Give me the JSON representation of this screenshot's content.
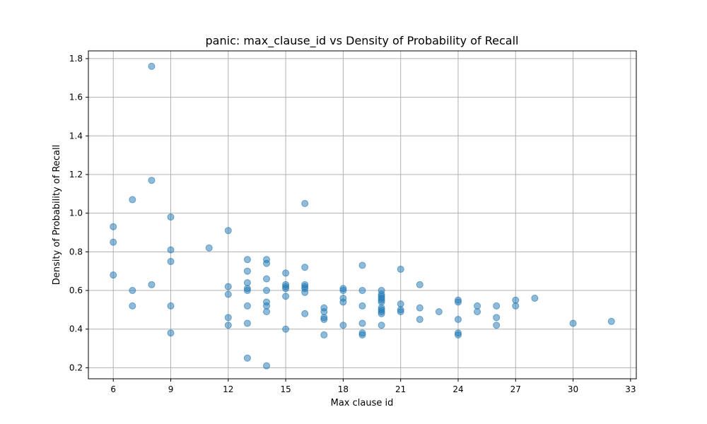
{
  "chart_data": {
    "type": "scatter",
    "title": "panic: max_clause_id vs Density of Probability of Recall",
    "xlabel": "Max clause id",
    "ylabel": "Density of Probability of Recall",
    "xlim": [
      4.7,
      33.3
    ],
    "ylim": [
      0.143,
      1.84
    ],
    "xticks": [
      6,
      9,
      12,
      15,
      18,
      21,
      24,
      27,
      30,
      33
    ],
    "yticks": [
      0.2,
      0.4,
      0.6,
      0.8,
      1.0,
      1.2,
      1.4,
      1.6,
      1.8
    ],
    "ytick_labels": [
      "0.2",
      "0.4",
      "0.6",
      "0.8",
      "1.0",
      "1.2",
      "1.4",
      "1.6",
      "1.8"
    ],
    "grid": true,
    "color": "#1f77b4",
    "points": [
      [
        6,
        0.93
      ],
      [
        6,
        0.85
      ],
      [
        6,
        0.68
      ],
      [
        7,
        1.07
      ],
      [
        7,
        0.6
      ],
      [
        7,
        0.52
      ],
      [
        8,
        1.76
      ],
      [
        8,
        1.17
      ],
      [
        8,
        0.63
      ],
      [
        9,
        0.98
      ],
      [
        9,
        0.81
      ],
      [
        9,
        0.75
      ],
      [
        9,
        0.52
      ],
      [
        9,
        0.38
      ],
      [
        11,
        0.82
      ],
      [
        12,
        0.91
      ],
      [
        12,
        0.62
      ],
      [
        12,
        0.58
      ],
      [
        12,
        0.46
      ],
      [
        12,
        0.42
      ],
      [
        13,
        0.76
      ],
      [
        13,
        0.7
      ],
      [
        13,
        0.64
      ],
      [
        13,
        0.61
      ],
      [
        13,
        0.6
      ],
      [
        13,
        0.52
      ],
      [
        13,
        0.43
      ],
      [
        13,
        0.25
      ],
      [
        14,
        0.76
      ],
      [
        14,
        0.74
      ],
      [
        14,
        0.66
      ],
      [
        14,
        0.6
      ],
      [
        14,
        0.54
      ],
      [
        14,
        0.52
      ],
      [
        14,
        0.49
      ],
      [
        14,
        0.21
      ],
      [
        15,
        0.69
      ],
      [
        15,
        0.63
      ],
      [
        15,
        0.62
      ],
      [
        15,
        0.61
      ],
      [
        15,
        0.57
      ],
      [
        15,
        0.4
      ],
      [
        16,
        1.05
      ],
      [
        16,
        0.72
      ],
      [
        16,
        0.63
      ],
      [
        16,
        0.62
      ],
      [
        16,
        0.61
      ],
      [
        16,
        0.59
      ],
      [
        16,
        0.48
      ],
      [
        17,
        0.51
      ],
      [
        17,
        0.49
      ],
      [
        17,
        0.46
      ],
      [
        17,
        0.45
      ],
      [
        17,
        0.37
      ],
      [
        18,
        0.61
      ],
      [
        18,
        0.6
      ],
      [
        18,
        0.56
      ],
      [
        18,
        0.54
      ],
      [
        18,
        0.42
      ],
      [
        19,
        0.73
      ],
      [
        19,
        0.6
      ],
      [
        19,
        0.52
      ],
      [
        19,
        0.43
      ],
      [
        19,
        0.38
      ],
      [
        19,
        0.37
      ],
      [
        20,
        0.6
      ],
      [
        20,
        0.58
      ],
      [
        20,
        0.57
      ],
      [
        20,
        0.56
      ],
      [
        20,
        0.55
      ],
      [
        20,
        0.54
      ],
      [
        20,
        0.51
      ],
      [
        20,
        0.5
      ],
      [
        20,
        0.49
      ],
      [
        20,
        0.48
      ],
      [
        20,
        0.42
      ],
      [
        21,
        0.71
      ],
      [
        21,
        0.53
      ],
      [
        21,
        0.5
      ],
      [
        21,
        0.49
      ],
      [
        22,
        0.63
      ],
      [
        22,
        0.51
      ],
      [
        22,
        0.45
      ],
      [
        23,
        0.49
      ],
      [
        24,
        0.55
      ],
      [
        24,
        0.54
      ],
      [
        24,
        0.45
      ],
      [
        24,
        0.38
      ],
      [
        24,
        0.37
      ],
      [
        25,
        0.52
      ],
      [
        25,
        0.49
      ],
      [
        26,
        0.52
      ],
      [
        26,
        0.46
      ],
      [
        26,
        0.42
      ],
      [
        27,
        0.55
      ],
      [
        27,
        0.52
      ],
      [
        28,
        0.56
      ],
      [
        30,
        0.43
      ],
      [
        32,
        0.44
      ]
    ]
  }
}
